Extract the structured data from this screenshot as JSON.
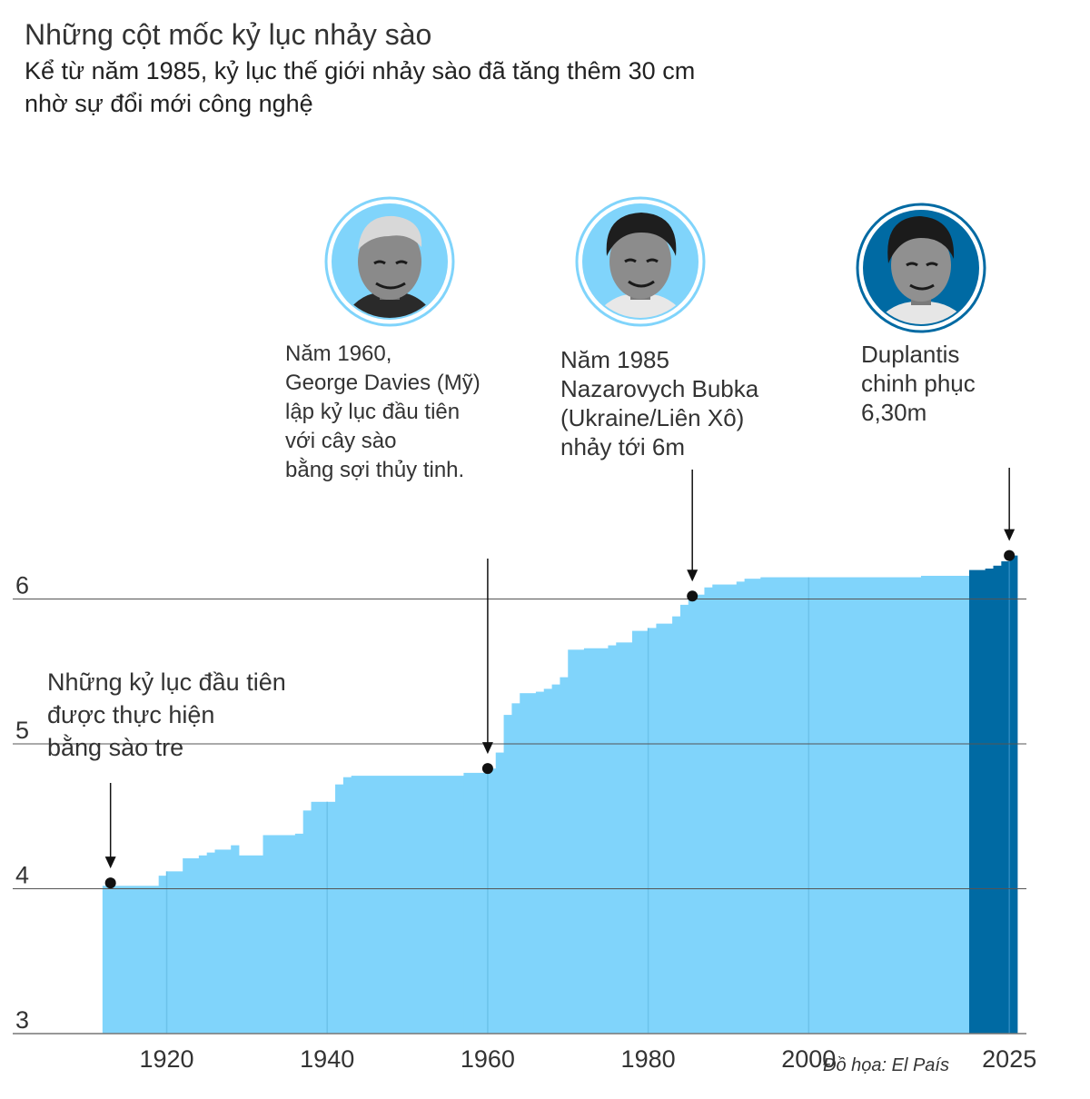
{
  "header": {
    "title": "Những cột mốc kỷ lục nhảy sào",
    "subtitle_lines": [
      "Kể từ năm 1985, kỷ lục thế giới nhảy sào đã tăng thêm 30 cm",
      "nhờ sự đổi mới công nghệ"
    ]
  },
  "annotations": {
    "bamboo": [
      "Những kỷ lục đầu tiên",
      "được thực hiện",
      "bằng sào tre"
    ],
    "davies": [
      "Năm 1960,",
      "George Davies (Mỹ)",
      "lập kỷ lục đầu tiên",
      "với cây sào",
      "bằng sợi thủy tinh."
    ],
    "bubka": [
      "Năm 1985",
      "Nazarovych Bubka",
      "(Ukraine/Liên Xô)",
      "nhảy tới 6m"
    ],
    "duplantis": [
      "Duplantis",
      "chinh phục",
      "6,30m"
    ]
  },
  "credit": "Đồ họa: El País",
  "colors": {
    "area": "#80d4fb",
    "area_recent": "#006aa3",
    "gridline": "#555555",
    "marker": "#111111",
    "portrait_bg": "#80d4fb",
    "portrait_recent_bg": "#006aa3"
  },
  "portraits": [
    {
      "name": "george-davies",
      "icon": "person-portrait"
    },
    {
      "name": "sergey-bubka",
      "icon": "person-portrait"
    },
    {
      "name": "duplantis",
      "icon": "person-portrait"
    }
  ],
  "chart_data": {
    "type": "area",
    "title": "Những cột mốc kỷ lục nhảy sào",
    "xlim": [
      1911,
      2026
    ],
    "ylim": [
      3,
      6.35
    ],
    "ytick_values": [
      3,
      4,
      5,
      6
    ],
    "ytick_labels": [
      "3",
      "4",
      "5",
      "6"
    ],
    "xtick_values": [
      1920,
      1940,
      1960,
      1980,
      2000,
      2025
    ],
    "xtick_labels": [
      "1920",
      "1940",
      "1960",
      "1980",
      "2000",
      "2025"
    ],
    "grid": true,
    "highlight_from": 2020,
    "steps": [
      {
        "year": 1912,
        "height": 4.02
      },
      {
        "year": 1919,
        "height": 4.09
      },
      {
        "year": 1920,
        "height": 4.12
      },
      {
        "year": 1922,
        "height": 4.21
      },
      {
        "year": 1924,
        "height": 4.23
      },
      {
        "year": 1925,
        "height": 4.25
      },
      {
        "year": 1926,
        "height": 4.27
      },
      {
        "year": 1928,
        "height": 4.3
      },
      {
        "year": 1929,
        "height": 4.23
      },
      {
        "year": 1932,
        "height": 4.37
      },
      {
        "year": 1936,
        "height": 4.38
      },
      {
        "year": 1937,
        "height": 4.54
      },
      {
        "year": 1938,
        "height": 4.6
      },
      {
        "year": 1941,
        "height": 4.72
      },
      {
        "year": 1942,
        "height": 4.77
      },
      {
        "year": 1943,
        "height": 4.78
      },
      {
        "year": 1957,
        "height": 4.8
      },
      {
        "year": 1960,
        "height": 4.83
      },
      {
        "year": 1961,
        "height": 4.94
      },
      {
        "year": 1962,
        "height": 5.2
      },
      {
        "year": 1963,
        "height": 5.28
      },
      {
        "year": 1964,
        "height": 5.35
      },
      {
        "year": 1966,
        "height": 5.36
      },
      {
        "year": 1967,
        "height": 5.38
      },
      {
        "year": 1968,
        "height": 5.41
      },
      {
        "year": 1969,
        "height": 5.46
      },
      {
        "year": 1970,
        "height": 5.65
      },
      {
        "year": 1972,
        "height": 5.66
      },
      {
        "year": 1975,
        "height": 5.68
      },
      {
        "year": 1976,
        "height": 5.7
      },
      {
        "year": 1978,
        "height": 5.78
      },
      {
        "year": 1980,
        "height": 5.8
      },
      {
        "year": 1981,
        "height": 5.83
      },
      {
        "year": 1983,
        "height": 5.88
      },
      {
        "year": 1984,
        "height": 5.96
      },
      {
        "year": 1985,
        "height": 6.03
      },
      {
        "year": 1987,
        "height": 6.08
      },
      {
        "year": 1988,
        "height": 6.1
      },
      {
        "year": 1991,
        "height": 6.12
      },
      {
        "year": 1992,
        "height": 6.14
      },
      {
        "year": 1994,
        "height": 6.15
      },
      {
        "year": 2014,
        "height": 6.16
      },
      {
        "year": 2020,
        "height": 6.2
      },
      {
        "year": 2022,
        "height": 6.21
      },
      {
        "year": 2023,
        "height": 6.23
      },
      {
        "year": 2024,
        "height": 6.26
      },
      {
        "year": 2025,
        "height": 6.3
      }
    ],
    "markers": [
      {
        "year": 1913,
        "height": 4.04,
        "annotation": "bamboo"
      },
      {
        "year": 1960,
        "height": 4.83,
        "annotation": "davies"
      },
      {
        "year": 1985.5,
        "height": 6.02,
        "annotation": "bubka"
      },
      {
        "year": 2025,
        "height": 6.3,
        "annotation": "duplantis"
      }
    ]
  }
}
